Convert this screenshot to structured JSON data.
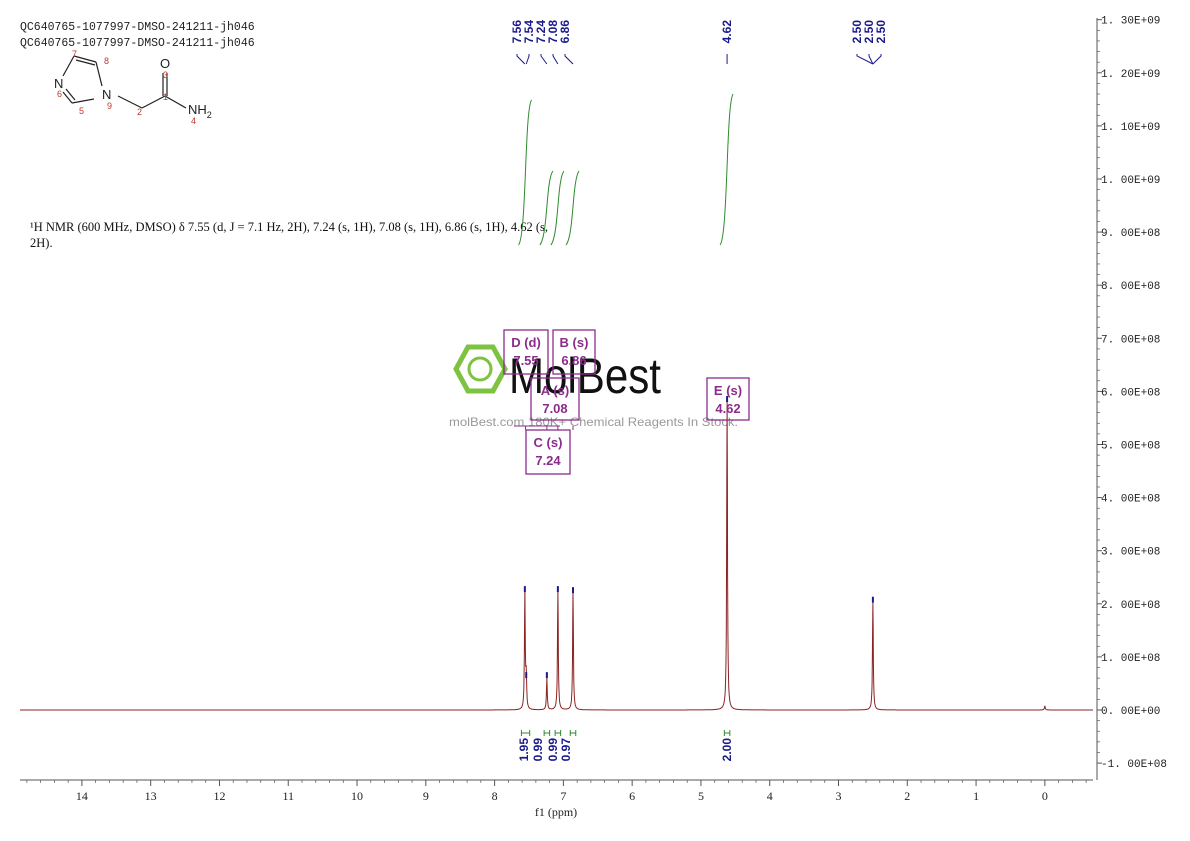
{
  "header": {
    "sample_id_line1": "QC640765-1077997-DMSO-241211-jh046",
    "sample_id_line2": "QC640765-1077997-DMSO-241211-jh046"
  },
  "structure": {
    "O": "O",
    "N_ring_left": "N",
    "N_ring_right": "N",
    "NH": "NH",
    "sub2": "2",
    "numbers": [
      "7",
      "8",
      "6",
      "9",
      "5",
      "2",
      "1",
      "3",
      "4"
    ]
  },
  "nmr_description": {
    "line1": "¹H NMR (600 MHz, DMSO) δ 7.55 (d, J = 7.1 Hz, 2H), 7.24 (s, 1H), 7.08 (s, 1H), 6.86 (s, 1H), 4.62 (s,",
    "line2": "2H)."
  },
  "watermark": {
    "brand": "MolBest",
    "tagline": "molBest.com 180K+ Chemical Reagents In Stock."
  },
  "colors": {
    "spectrum": "#8b2323",
    "peak_label": "#1a1a8c",
    "integral": "#2e8b2e",
    "multiplet_box": "#8b2c8b",
    "watermark_green": "#7ec242",
    "axis": "#555555"
  },
  "chart_data": {
    "type": "line",
    "xlabel": "f1  (ppm)",
    "xlim": [
      14.9,
      -0.7
    ],
    "ylim": [
      -120000000,
      1310000000
    ],
    "x_ticks": [
      14,
      13,
      12,
      11,
      10,
      9,
      8,
      7,
      6,
      5,
      4,
      3,
      2,
      1,
      0
    ],
    "y_ticks": [
      {
        "value": 1300000000,
        "label": "1. 30E+09"
      },
      {
        "value": 1200000000,
        "label": "1. 20E+09"
      },
      {
        "value": 1100000000,
        "label": "1. 10E+09"
      },
      {
        "value": 1000000000,
        "label": "1. 00E+09"
      },
      {
        "value": 900000000,
        "label": "9. 00E+08"
      },
      {
        "value": 800000000,
        "label": "8. 00E+08"
      },
      {
        "value": 700000000,
        "label": "7. 00E+08"
      },
      {
        "value": 600000000,
        "label": "6. 00E+08"
      },
      {
        "value": 500000000,
        "label": "5. 00E+08"
      },
      {
        "value": 400000000,
        "label": "4. 00E+08"
      },
      {
        "value": 300000000,
        "label": "3. 00E+08"
      },
      {
        "value": 200000000,
        "label": "2. 00E+08"
      },
      {
        "value": 100000000,
        "label": "1. 00E+08"
      },
      {
        "value": 0,
        "label": "0. 00E+00"
      },
      {
        "value": -100000000,
        "label": "-1. 00E+08"
      }
    ],
    "peaks": [
      {
        "ppm": 7.56,
        "height": 222000000
      },
      {
        "ppm": 7.54,
        "height": 60000000
      },
      {
        "ppm": 7.24,
        "height": 60000000
      },
      {
        "ppm": 7.08,
        "height": 222000000
      },
      {
        "ppm": 6.86,
        "height": 220000000
      },
      {
        "ppm": 4.62,
        "height": 580000000
      },
      {
        "ppm": 2.5,
        "height": 202000000
      },
      {
        "ppm": 0.0,
        "height": 8000000
      }
    ],
    "peak_labels": {
      "group1": [
        "7.56",
        "7.54",
        "7.24",
        "7.08",
        "6.86"
      ],
      "group2": [
        "4.62"
      ],
      "group3": [
        "2.50",
        "2.50",
        "2.50"
      ]
    },
    "integrals": [
      {
        "ppm": 7.55,
        "value": "1.95"
      },
      {
        "ppm": 7.24,
        "value": "0.99"
      },
      {
        "ppm": 7.08,
        "value": "0.99"
      },
      {
        "ppm": 6.86,
        "value": "0.97"
      },
      {
        "ppm": 4.62,
        "value": "2.00"
      }
    ],
    "multiplets": [
      {
        "name": "D (d)",
        "shift": "7.55"
      },
      {
        "name": "B (s)",
        "shift": "6.86"
      },
      {
        "name": "A (s)",
        "shift": "7.08"
      },
      {
        "name": "C (s)",
        "shift": "7.24"
      },
      {
        "name": "E (s)",
        "shift": "4.62"
      }
    ]
  }
}
